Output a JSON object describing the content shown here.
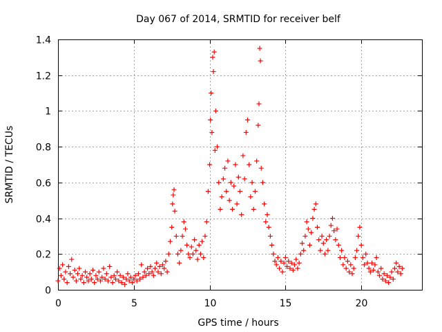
{
  "chart_data": {
    "type": "scatter",
    "title": "Day 067 of 2014, SRMTID for receiver belf",
    "xlabel": "GPS time / hours",
    "ylabel": "SRMTID / TECUs",
    "xlim": [
      0,
      24
    ],
    "ylim": [
      0,
      1.4
    ],
    "xticks": [
      "0",
      "5",
      "10",
      "15",
      "20"
    ],
    "xtick_values": [
      0,
      5,
      10,
      15,
      20
    ],
    "yticks": [
      "0",
      "0.2",
      "0.4",
      "0.6",
      "0.8",
      "1",
      "1.2",
      "1.4"
    ],
    "ytick_values": [
      0,
      0.2,
      0.4,
      0.6,
      0.8,
      1.0,
      1.2,
      1.4
    ],
    "grid": true,
    "marker": "plus",
    "color": "#ff0000",
    "series": [
      {
        "name": "SRMTID",
        "points": [
          [
            0.0,
            0.05
          ],
          [
            0.1,
            0.12
          ],
          [
            0.2,
            0.08
          ],
          [
            0.3,
            0.14
          ],
          [
            0.4,
            0.06
          ],
          [
            0.5,
            0.1
          ],
          [
            0.6,
            0.04
          ],
          [
            0.7,
            0.13
          ],
          [
            0.8,
            0.09
          ],
          [
            0.9,
            0.17
          ],
          [
            1.0,
            0.07
          ],
          [
            1.1,
            0.11
          ],
          [
            1.2,
            0.05
          ],
          [
            1.3,
            0.09
          ],
          [
            1.4,
            0.12
          ],
          [
            1.5,
            0.06
          ],
          [
            1.6,
            0.08
          ],
          [
            1.7,
            0.04
          ],
          [
            1.8,
            0.1
          ],
          [
            1.9,
            0.07
          ],
          [
            2.0,
            0.05
          ],
          [
            2.1,
            0.09
          ],
          [
            2.2,
            0.06
          ],
          [
            2.3,
            0.11
          ],
          [
            2.4,
            0.04
          ],
          [
            2.5,
            0.08
          ],
          [
            2.6,
            0.06
          ],
          [
            2.7,
            0.1
          ],
          [
            2.8,
            0.05
          ],
          [
            2.9,
            0.07
          ],
          [
            3.0,
            0.12
          ],
          [
            3.1,
            0.06
          ],
          [
            3.2,
            0.09
          ],
          [
            3.3,
            0.05
          ],
          [
            3.4,
            0.13
          ],
          [
            3.5,
            0.07
          ],
          [
            3.6,
            0.04
          ],
          [
            3.7,
            0.08
          ],
          [
            3.8,
            0.06
          ],
          [
            3.9,
            0.1
          ],
          [
            4.0,
            0.05
          ],
          [
            4.1,
            0.08
          ],
          [
            4.2,
            0.04
          ],
          [
            4.3,
            0.07
          ],
          [
            4.4,
            0.03
          ],
          [
            4.5,
            0.06
          ],
          [
            4.6,
            0.09
          ],
          [
            4.7,
            0.05
          ],
          [
            4.8,
            0.07
          ],
          [
            4.9,
            0.04
          ],
          [
            5.0,
            0.06
          ],
          [
            5.1,
            0.08
          ],
          [
            5.2,
            0.05
          ],
          [
            5.3,
            0.09
          ],
          [
            5.4,
            0.06
          ],
          [
            5.5,
            0.14
          ],
          [
            5.6,
            0.07
          ],
          [
            5.7,
            0.1
          ],
          [
            5.8,
            0.08
          ],
          [
            5.9,
            0.12
          ],
          [
            6.0,
            0.09
          ],
          [
            6.1,
            0.13
          ],
          [
            6.2,
            0.1
          ],
          [
            6.3,
            0.08
          ],
          [
            6.4,
            0.12
          ],
          [
            6.5,
            0.15
          ],
          [
            6.6,
            0.1
          ],
          [
            6.7,
            0.13
          ],
          [
            6.8,
            0.09
          ],
          [
            6.9,
            0.14
          ],
          [
            7.0,
            0.12
          ],
          [
            7.1,
            0.16
          ],
          [
            7.2,
            0.1
          ],
          [
            7.3,
            0.2
          ],
          [
            7.4,
            0.27
          ],
          [
            7.5,
            0.35
          ],
          [
            7.55,
            0.48
          ],
          [
            7.6,
            0.53
          ],
          [
            7.65,
            0.56
          ],
          [
            7.7,
            0.44
          ],
          [
            7.8,
            0.3
          ],
          [
            7.9,
            0.2
          ],
          [
            8.0,
            0.15
          ],
          [
            8.1,
            0.22
          ],
          [
            8.2,
            0.3
          ],
          [
            8.3,
            0.38
          ],
          [
            8.4,
            0.34
          ],
          [
            8.5,
            0.25
          ],
          [
            8.6,
            0.2
          ],
          [
            8.7,
            0.18
          ],
          [
            8.8,
            0.24
          ],
          [
            8.9,
            0.2
          ],
          [
            9.0,
            0.28
          ],
          [
            9.1,
            0.22
          ],
          [
            9.2,
            0.17
          ],
          [
            9.3,
            0.25
          ],
          [
            9.4,
            0.2
          ],
          [
            9.5,
            0.27
          ],
          [
            9.6,
            0.18
          ],
          [
            9.7,
            0.3
          ],
          [
            9.8,
            0.38
          ],
          [
            9.9,
            0.55
          ],
          [
            10.0,
            0.7
          ],
          [
            10.05,
            0.95
          ],
          [
            10.1,
            1.1
          ],
          [
            10.15,
            0.88
          ],
          [
            10.2,
            1.3
          ],
          [
            10.25,
            1.22
          ],
          [
            10.3,
            1.33
          ],
          [
            10.35,
            0.78
          ],
          [
            10.4,
            1.0
          ],
          [
            10.5,
            0.8
          ],
          [
            10.6,
            0.6
          ],
          [
            10.7,
            0.45
          ],
          [
            10.8,
            0.52
          ],
          [
            10.9,
            0.62
          ],
          [
            11.0,
            0.68
          ],
          [
            11.1,
            0.55
          ],
          [
            11.2,
            0.72
          ],
          [
            11.3,
            0.5
          ],
          [
            11.4,
            0.6
          ],
          [
            11.5,
            0.45
          ],
          [
            11.6,
            0.58
          ],
          [
            11.7,
            0.7
          ],
          [
            11.8,
            0.48
          ],
          [
            11.9,
            0.63
          ],
          [
            12.0,
            0.55
          ],
          [
            12.1,
            0.42
          ],
          [
            12.2,
            0.75
          ],
          [
            12.3,
            0.62
          ],
          [
            12.4,
            0.88
          ],
          [
            12.5,
            0.95
          ],
          [
            12.6,
            0.7
          ],
          [
            12.7,
            0.52
          ],
          [
            12.8,
            0.6
          ],
          [
            12.9,
            0.45
          ],
          [
            13.0,
            0.55
          ],
          [
            13.1,
            0.72
          ],
          [
            13.2,
            0.92
          ],
          [
            13.25,
            1.04
          ],
          [
            13.3,
            1.35
          ],
          [
            13.35,
            1.28
          ],
          [
            13.4,
            0.68
          ],
          [
            13.5,
            0.6
          ],
          [
            13.6,
            0.48
          ],
          [
            13.7,
            0.38
          ],
          [
            13.8,
            0.42
          ],
          [
            13.9,
            0.35
          ],
          [
            14.0,
            0.3
          ],
          [
            14.1,
            0.25
          ],
          [
            14.2,
            0.2
          ],
          [
            14.3,
            0.16
          ],
          [
            14.4,
            0.14
          ],
          [
            14.5,
            0.18
          ],
          [
            14.6,
            0.12
          ],
          [
            14.7,
            0.16
          ],
          [
            14.8,
            0.1
          ],
          [
            14.9,
            0.15
          ],
          [
            15.0,
            0.18
          ],
          [
            15.1,
            0.13
          ],
          [
            15.2,
            0.16
          ],
          [
            15.3,
            0.12
          ],
          [
            15.4,
            0.15
          ],
          [
            15.5,
            0.11
          ],
          [
            15.6,
            0.14
          ],
          [
            15.7,
            0.17
          ],
          [
            15.8,
            0.12
          ],
          [
            15.9,
            0.15
          ],
          [
            16.0,
            0.2
          ],
          [
            16.1,
            0.26
          ],
          [
            16.2,
            0.22
          ],
          [
            16.3,
            0.3
          ],
          [
            16.4,
            0.38
          ],
          [
            16.5,
            0.34
          ],
          [
            16.6,
            0.25
          ],
          [
            16.7,
            0.32
          ],
          [
            16.8,
            0.4
          ],
          [
            16.9,
            0.45
          ],
          [
            17.0,
            0.48
          ],
          [
            17.1,
            0.35
          ],
          [
            17.2,
            0.28
          ],
          [
            17.3,
            0.22
          ],
          [
            17.4,
            0.3
          ],
          [
            17.5,
            0.26
          ],
          [
            17.6,
            0.2
          ],
          [
            17.7,
            0.28
          ],
          [
            17.8,
            0.22
          ],
          [
            17.9,
            0.3
          ],
          [
            18.0,
            0.36
          ],
          [
            18.1,
            0.4
          ],
          [
            18.2,
            0.33
          ],
          [
            18.3,
            0.28
          ],
          [
            18.4,
            0.34
          ],
          [
            18.5,
            0.25
          ],
          [
            18.6,
            0.18
          ],
          [
            18.7,
            0.22
          ],
          [
            18.8,
            0.14
          ],
          [
            18.9,
            0.18
          ],
          [
            19.0,
            0.12
          ],
          [
            19.1,
            0.16
          ],
          [
            19.2,
            0.1
          ],
          [
            19.3,
            0.14
          ],
          [
            19.4,
            0.09
          ],
          [
            19.5,
            0.12
          ],
          [
            19.6,
            0.18
          ],
          [
            19.7,
            0.22
          ],
          [
            19.8,
            0.3
          ],
          [
            19.9,
            0.35
          ],
          [
            20.0,
            0.25
          ],
          [
            20.1,
            0.18
          ],
          [
            20.2,
            0.14
          ],
          [
            20.3,
            0.2
          ],
          [
            20.4,
            0.15
          ],
          [
            20.5,
            0.12
          ],
          [
            20.6,
            0.1
          ],
          [
            20.7,
            0.15
          ],
          [
            20.8,
            0.11
          ],
          [
            20.9,
            0.14
          ],
          [
            21.0,
            0.18
          ],
          [
            21.1,
            0.1
          ],
          [
            21.2,
            0.08
          ],
          [
            21.3,
            0.12
          ],
          [
            21.4,
            0.06
          ],
          [
            21.5,
            0.09
          ],
          [
            21.6,
            0.05
          ],
          [
            21.7,
            0.08
          ],
          [
            21.8,
            0.04
          ],
          [
            21.9,
            0.07
          ],
          [
            22.0,
            0.1
          ],
          [
            22.1,
            0.06
          ],
          [
            22.2,
            0.12
          ],
          [
            22.3,
            0.15
          ],
          [
            22.4,
            0.1
          ],
          [
            22.5,
            0.13
          ],
          [
            22.6,
            0.09
          ],
          [
            22.7,
            0.12
          ]
        ]
      }
    ]
  }
}
